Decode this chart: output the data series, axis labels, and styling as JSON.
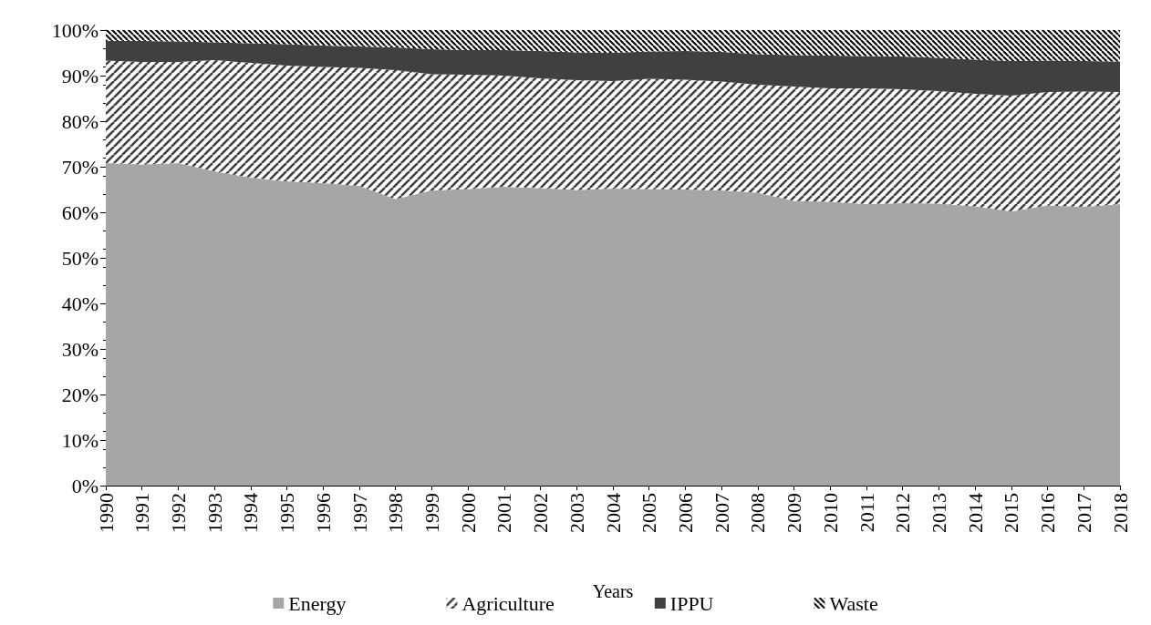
{
  "chart_data": {
    "type": "area",
    "stacked": true,
    "xlabel": "Years",
    "categories": [
      "1990",
      "1991",
      "1992",
      "1993",
      "1994",
      "1995",
      "1996",
      "1997",
      "1998",
      "1999",
      "2000",
      "2001",
      "2002",
      "2003",
      "2004",
      "2005",
      "2006",
      "2007",
      "2008",
      "2009",
      "2010",
      "2011",
      "2012",
      "2013",
      "2014",
      "2015",
      "2016",
      "2017",
      "2018"
    ],
    "series": [
      {
        "name": "Energy",
        "color": "#a6a6a6",
        "values": [
          70.8,
          70.5,
          70.8,
          69.0,
          67.6,
          66.8,
          66.4,
          65.8,
          62.9,
          64.8,
          65.1,
          65.6,
          65.3,
          64.9,
          65.2,
          65.1,
          65.0,
          64.8,
          64.3,
          62.5,
          62.3,
          61.8,
          62.0,
          61.9,
          61.3,
          60.2,
          61.5,
          61.2,
          61.8
        ]
      },
      {
        "name": "Agriculture",
        "color": "#404040",
        "values": [
          22.5,
          22.5,
          22.2,
          24.4,
          25.2,
          25.4,
          25.5,
          25.9,
          28.3,
          25.5,
          25.1,
          24.4,
          24.1,
          24.1,
          23.6,
          24.2,
          24.1,
          23.9,
          23.7,
          25.1,
          24.9,
          25.4,
          25.0,
          24.7,
          24.7,
          25.4,
          24.9,
          25.3,
          24.6
        ]
      },
      {
        "name": "IPPU",
        "color": "#404040",
        "values": [
          4.3,
          4.6,
          4.5,
          3.9,
          4.3,
          4.7,
          4.7,
          4.7,
          5.0,
          5.5,
          5.4,
          5.6,
          6.0,
          6.1,
          6.2,
          6.0,
          6.3,
          6.5,
          6.7,
          6.9,
          7.2,
          7.1,
          7.2,
          7.3,
          7.5,
          7.6,
          6.9,
          6.7,
          6.7
        ]
      },
      {
        "name": "Waste",
        "color": "#000000",
        "values": [
          2.4,
          2.4,
          2.5,
          2.7,
          2.9,
          3.1,
          3.4,
          3.6,
          3.8,
          4.2,
          4.4,
          4.4,
          4.6,
          4.9,
          5.0,
          4.7,
          4.6,
          4.8,
          5.3,
          5.5,
          5.6,
          5.7,
          5.8,
          6.1,
          6.5,
          6.8,
          6.7,
          6.8,
          6.9
        ]
      }
    ],
    "ylim": [
      0,
      100
    ],
    "yticks": [
      {
        "value": 0,
        "label": "0%"
      },
      {
        "value": 10,
        "label": "10%"
      },
      {
        "value": 20,
        "label": "20%"
      },
      {
        "value": 30,
        "label": "30%"
      },
      {
        "value": 40,
        "label": "40%"
      },
      {
        "value": 50,
        "label": "50%"
      },
      {
        "value": 60,
        "label": "60%"
      },
      {
        "value": 70,
        "label": "70%"
      },
      {
        "value": 80,
        "label": "80%"
      },
      {
        "value": 90,
        "label": "90%"
      },
      {
        "value": 100,
        "label": "100%"
      }
    ],
    "grid": false,
    "legend": "bottom"
  }
}
